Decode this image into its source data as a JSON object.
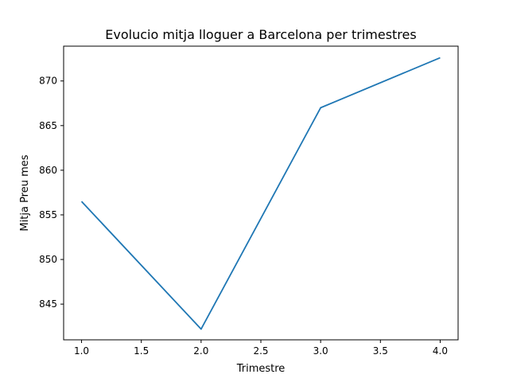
{
  "chart_data": {
    "type": "line",
    "title": "Evolucio mitja lloguer a Barcelona per trimestres",
    "xlabel": "Trimestre",
    "ylabel": "Mitja Preu mes",
    "xlim": [
      0.85,
      4.15
    ],
    "ylim": [
      841.0,
      873.9
    ],
    "xticks": [
      1.0,
      1.5,
      2.0,
      2.5,
      3.0,
      3.5,
      4.0
    ],
    "xtick_labels": [
      "1.0",
      "1.5",
      "2.0",
      "2.5",
      "3.0",
      "3.5",
      "4.0"
    ],
    "yticks": [
      845,
      850,
      855,
      860,
      865,
      870
    ],
    "ytick_labels": [
      "845",
      "850",
      "855",
      "860",
      "865",
      "870"
    ],
    "grid": false,
    "series": [
      {
        "color": "#1f77b4",
        "x": [
          1.0,
          2.0,
          3.0,
          4.0
        ],
        "values": [
          856.5,
          842.2,
          867.0,
          872.6
        ]
      }
    ]
  }
}
